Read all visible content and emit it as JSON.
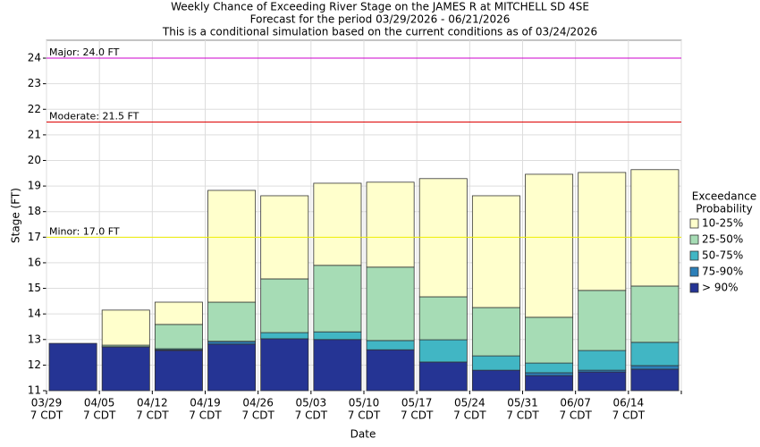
{
  "chart_data": {
    "type": "exceedance",
    "title": "Weekly Chance of Exceeding River Stage on the JAMES R at MITCHELL SD 4SE",
    "subtitle": "Forecast for the period 03/29/2026 - 06/21/2026",
    "note": "This is a conditional simulation based on the current conditions as of 03/24/2026",
    "y_label": "Stage (FT)",
    "x_label": "Date",
    "categories": [
      "03/29",
      "04/05",
      "04/12",
      "04/19",
      "04/26",
      "05/03",
      "05/10",
      "05/17",
      "05/24",
      "05/31",
      "06/07",
      "06/14"
    ],
    "time_label": "7 CDT",
    "ylim": [
      11,
      24.7
    ],
    "yticks": [
      11,
      12,
      13,
      14,
      15,
      16,
      17,
      18,
      19,
      20,
      21,
      22,
      23,
      24
    ],
    "grid": true,
    "legend_title": "Exceedance Probability",
    "series": [
      {
        "name": "> 90%",
        "color": "#253494",
        "values": [
          12.85,
          12.71,
          12.57,
          12.82,
          13.03,
          13.0,
          12.6,
          12.12,
          11.8,
          11.59,
          11.73,
          11.84
        ]
      },
      {
        "name": "75-90%",
        "color": "#2c7fb8",
        "values": [
          12.85,
          12.72,
          12.6,
          12.92,
          13.03,
          13.0,
          12.6,
          12.12,
          11.8,
          11.7,
          11.8,
          11.98
        ]
      },
      {
        "name": "50-75%",
        "color": "#41b6c4",
        "values": [
          12.85,
          12.72,
          12.64,
          12.93,
          13.27,
          13.3,
          12.96,
          12.99,
          12.36,
          12.08,
          12.57,
          12.89
        ]
      },
      {
        "name": "25-50%",
        "color": "#a6dcb5",
        "values": [
          12.85,
          12.78,
          13.59,
          14.46,
          15.37,
          15.9,
          15.83,
          14.67,
          14.25,
          13.87,
          14.92,
          15.09
        ]
      },
      {
        "name": "10-25%",
        "color": "#ffffcc",
        "values": [
          12.85,
          14.15,
          14.46,
          18.83,
          18.62,
          19.11,
          19.15,
          19.29,
          18.62,
          19.46,
          19.53,
          19.64
        ]
      }
    ],
    "thresholds": [
      {
        "label": "Major: 24.0 FT",
        "value": 24,
        "color": "#cc00cc"
      },
      {
        "label": "Moderate: 21.5 FT",
        "value": 21.5,
        "color": "#dd0000"
      },
      {
        "label": "Minor: 17.0 FT",
        "value": 17,
        "color": "#eeee00"
      }
    ]
  }
}
